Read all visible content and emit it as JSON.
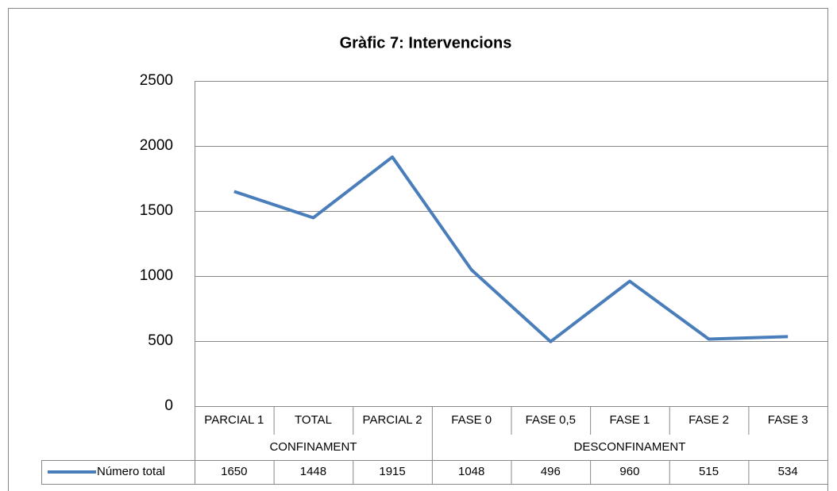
{
  "chart_data": {
    "type": "line",
    "title": "Gràfic 7: Intervencions",
    "groups": [
      {
        "name": "CONFINAMENT",
        "categories": [
          "PARCIAL 1",
          "TOTAL",
          "PARCIAL 2"
        ]
      },
      {
        "name": "DESCONFINAMENT",
        "categories": [
          "FASE 0",
          "FASE 0,5",
          "FASE 1",
          "FASE 2",
          "FASE 3"
        ]
      }
    ],
    "series": [
      {
        "name": "Número total",
        "color": "#4a7ebb",
        "values": [
          1650,
          1448,
          1915,
          1048,
          496,
          960,
          515,
          534
        ]
      }
    ],
    "ylim": [
      0,
      2500
    ],
    "yticks": [
      0,
      500,
      1000,
      1500,
      2000,
      2500
    ],
    "grid": true,
    "data_table": true
  }
}
